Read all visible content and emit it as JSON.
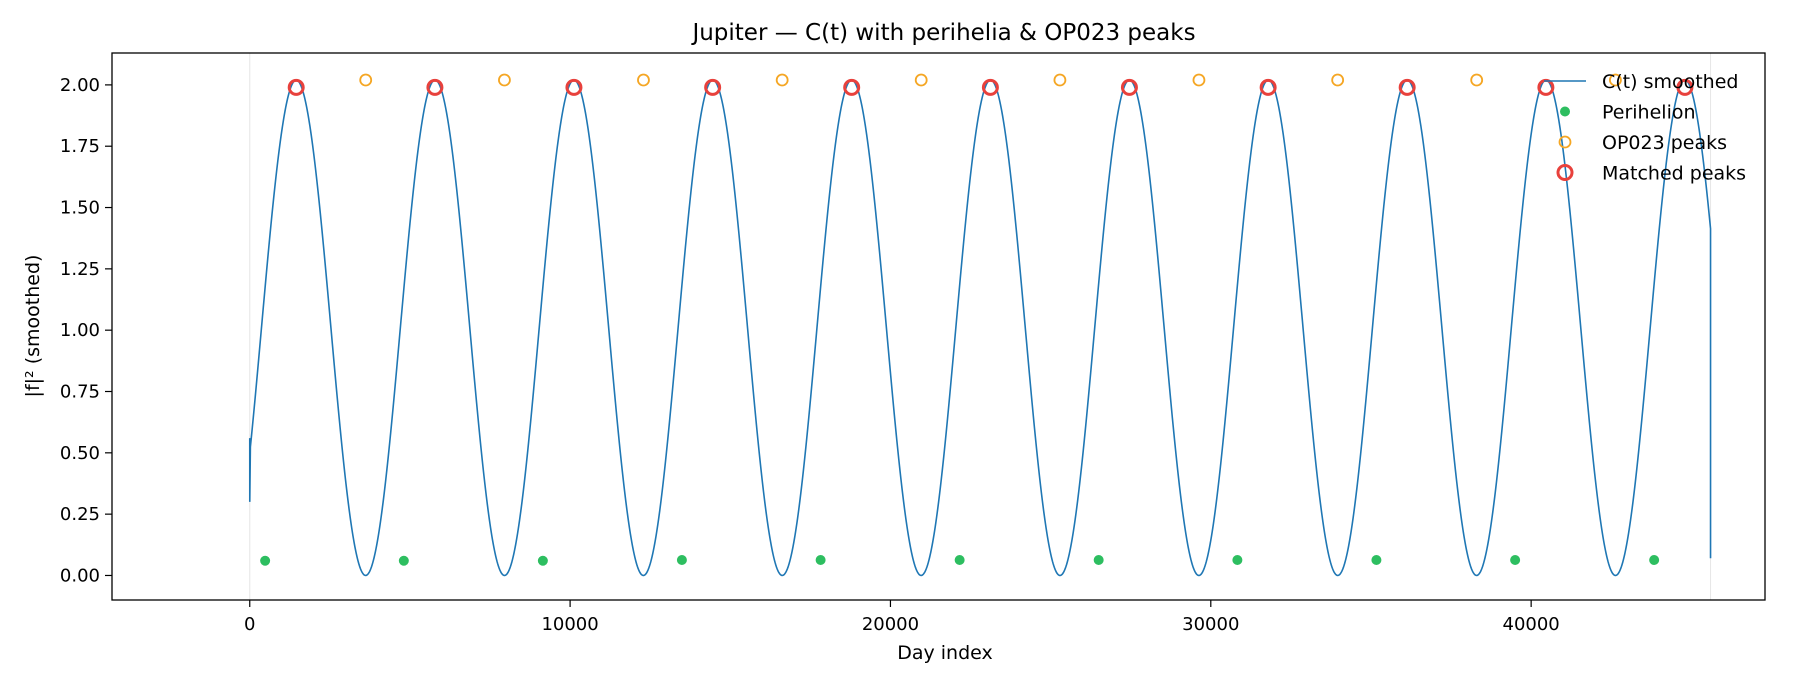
{
  "chart_data": {
    "type": "line",
    "title": "Jupiter — C(t) with perihelia & OP023 peaks",
    "xlabel": "Day index",
    "ylabel": "|f|² (smoothed)",
    "xlim": [
      -4300,
      47300
    ],
    "ylim": [
      -0.1,
      2.13
    ],
    "xticks": [
      0,
      10000,
      20000,
      30000,
      40000
    ],
    "xtick_labels": [
      "0",
      "10000",
      "20000",
      "30000",
      "40000"
    ],
    "yticks": [
      0,
      0.25,
      0.5,
      0.75,
      1.0,
      1.25,
      1.5,
      1.75,
      2.0
    ],
    "ytick_labels": [
      "0.00",
      "0.25",
      "0.50",
      "0.75",
      "1.00",
      "1.25",
      "1.50",
      "1.75",
      "2.00"
    ],
    "grid": false,
    "legend_position": "top-right",
    "vertical_markers_x": [
      0,
      45600
    ],
    "series": [
      {
        "name": "C(t) smoothed",
        "kind": "line",
        "color": "#1f77b4",
        "model": {
          "x_start": 0,
          "x_end": 45600,
          "period": 4335,
          "first_peak_x": 1450,
          "amplitude": 2.02,
          "y_first": 0.56,
          "y_first_next": 0.3,
          "y_last": 0.07
        }
      },
      {
        "name": "Perihelion",
        "kind": "scatter",
        "color": "#2dbe60",
        "x": [
          480,
          4810,
          9150,
          13490,
          17820,
          22160,
          26500,
          30830,
          35170,
          39500,
          43840
        ],
        "y": [
          0.06,
          0.06,
          0.06,
          0.063,
          0.063,
          0.063,
          0.063,
          0.063,
          0.063,
          0.063,
          0.063
        ]
      },
      {
        "name": "OP023 peaks",
        "kind": "scatter-open",
        "color": "#f5a623",
        "x": [
          3620,
          7950,
          12290,
          16620,
          20960,
          25290,
          29630,
          33960,
          38300,
          42630
        ],
        "y": [
          2.02,
          2.02,
          2.02,
          2.02,
          2.02,
          2.02,
          2.02,
          2.02,
          2.02,
          2.02
        ]
      },
      {
        "name": "Matched peaks",
        "kind": "scatter-open-thick",
        "color": "#e8413c",
        "x": [
          1450,
          5780,
          10120,
          14450,
          18790,
          23120,
          27460,
          31790,
          36130,
          40460,
          44800
        ],
        "y": [
          1.99,
          1.99,
          1.99,
          1.99,
          1.99,
          1.99,
          1.99,
          1.99,
          1.99,
          1.99,
          1.99
        ]
      }
    ]
  }
}
